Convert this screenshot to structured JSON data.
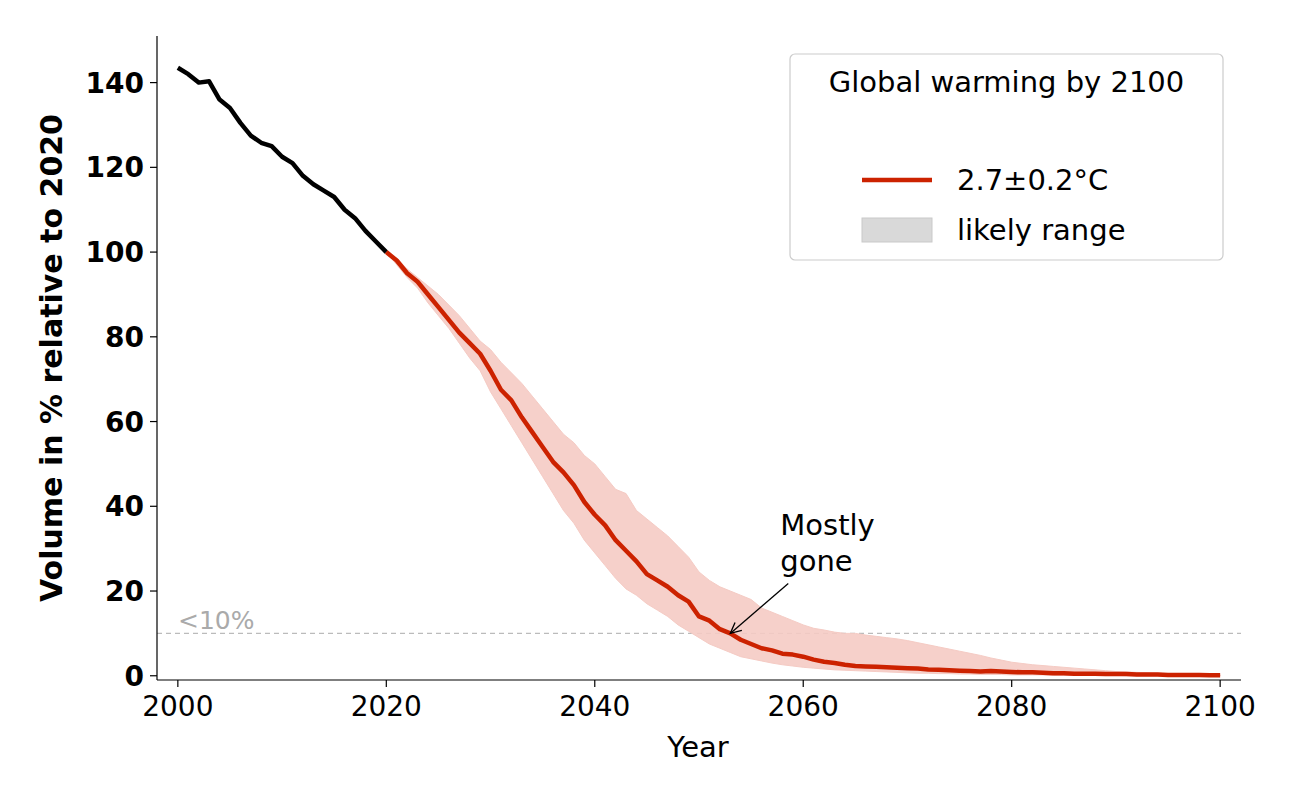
{
  "chart_data": {
    "type": "line",
    "x_label": "Year",
    "y_label": "Volume in % relative to 2020",
    "legend_title": "Global warming by 2100",
    "legend": "upper right",
    "grid": false,
    "xlim": [
      1998,
      2102
    ],
    "ylim": [
      -1,
      151
    ],
    "xticks": [
      2000,
      2020,
      2040,
      2060,
      2080,
      2100
    ],
    "yticks": [
      0,
      20,
      40,
      60,
      80,
      100,
      120,
      140
    ],
    "reference_lines": [
      {
        "value": 10,
        "label": "<10%",
        "line_style": "dashed",
        "color": "#bbbbbb"
      }
    ],
    "annotations": [
      {
        "text": "Mostly gone",
        "x": 2053,
        "y": 10
      }
    ],
    "x": [
      2000,
      2001,
      2002,
      2003,
      2004,
      2005,
      2006,
      2007,
      2008,
      2009,
      2010,
      2011,
      2012,
      2013,
      2014,
      2015,
      2016,
      2017,
      2018,
      2019,
      2020,
      2021,
      2022,
      2023,
      2024,
      2025,
      2026,
      2027,
      2028,
      2029,
      2030,
      2031,
      2032,
      2033,
      2034,
      2035,
      2036,
      2037,
      2038,
      2039,
      2040,
      2041,
      2042,
      2043,
      2044,
      2045,
      2046,
      2047,
      2048,
      2049,
      2050,
      2051,
      2052,
      2053,
      2054,
      2055,
      2056,
      2057,
      2058,
      2059,
      2060,
      2061,
      2062,
      2063,
      2064,
      2065,
      2066,
      2067,
      2068,
      2069,
      2070,
      2071,
      2072,
      2073,
      2074,
      2075,
      2076,
      2077,
      2078,
      2079,
      2080,
      2081,
      2082,
      2083,
      2084,
      2085,
      2086,
      2087,
      2088,
      2089,
      2090,
      2091,
      2092,
      2093,
      2094,
      2095,
      2096,
      2097,
      2098,
      2099,
      2100
    ],
    "series": [
      {
        "color": "#000000",
        "line_style": "solid",
        "values": [
          143.5,
          142,
          140,
          140.3,
          136,
          134,
          130.5,
          127.5,
          125.8,
          125,
          122.5,
          121,
          118,
          116,
          114.5,
          113,
          110,
          108,
          105,
          102.5,
          100,
          null,
          null,
          null,
          null,
          null,
          null,
          null,
          null,
          null,
          null,
          null,
          null,
          null,
          null,
          null,
          null,
          null,
          null,
          null,
          null,
          null,
          null,
          null,
          null,
          null,
          null,
          null,
          null,
          null,
          null,
          null,
          null,
          null,
          null,
          null,
          null,
          null,
          null,
          null,
          null,
          null,
          null,
          null,
          null,
          null,
          null,
          null,
          null,
          null,
          null,
          null,
          null,
          null,
          null,
          null,
          null,
          null,
          null,
          null,
          null,
          null,
          null,
          null,
          null,
          null,
          null,
          null,
          null,
          null,
          null,
          null,
          null,
          null,
          null,
          null,
          null,
          null,
          null,
          null,
          null
        ]
      },
      {
        "name": "2.7±0.2°C",
        "color": "#cc2200",
        "line_style": "solid",
        "values": [
          null,
          null,
          null,
          null,
          null,
          null,
          null,
          null,
          null,
          null,
          null,
          null,
          null,
          null,
          null,
          null,
          null,
          null,
          null,
          null,
          100,
          98,
          95,
          93,
          90,
          87,
          84,
          81,
          78.5,
          76,
          72,
          67.5,
          65,
          61,
          57.5,
          54,
          50.5,
          48,
          45,
          41,
          38,
          35.5,
          32,
          29.5,
          27,
          24,
          22.5,
          21,
          19,
          17.5,
          14,
          13,
          11,
          10,
          8.5,
          7.5,
          6.5,
          6,
          5.2,
          5,
          4.5,
          3.8,
          3.3,
          3,
          2.6,
          2.3,
          2.2,
          2.1,
          2,
          1.9,
          1.8,
          1.7,
          1.5,
          1.4,
          1.3,
          1.2,
          1.1,
          1,
          1.1,
          1,
          0.9,
          0.8,
          0.8,
          0.7,
          0.6,
          0.6,
          0.5,
          0.5,
          0.5,
          0.4,
          0.4,
          0.4,
          0.3,
          0.3,
          0.3,
          0.2,
          0.2,
          0.2,
          0.2,
          0.1,
          0.1
        ]
      },
      {
        "name": "likely range",
        "type": "band",
        "color": "#f5cbc4",
        "lower": [
          null,
          null,
          null,
          null,
          null,
          null,
          null,
          null,
          null,
          null,
          null,
          null,
          null,
          null,
          null,
          null,
          null,
          null,
          null,
          null,
          100,
          97,
          94,
          91.5,
          88,
          85,
          82,
          78.5,
          75,
          72,
          67,
          63,
          59,
          55,
          51,
          47,
          43,
          39,
          36,
          32,
          29,
          26,
          23,
          20.5,
          19,
          17,
          15.5,
          14,
          12,
          10.5,
          9,
          7.5,
          6.5,
          5.5,
          4.5,
          4,
          3.5,
          3,
          2.6,
          2.3,
          2,
          1.8,
          1.6,
          1.4,
          1.3,
          1.2,
          1.1,
          1,
          0.9,
          0.8,
          0.7,
          0.6,
          0.6,
          0.5,
          0.5,
          0.4,
          0.4,
          0.3,
          0.3,
          0.3,
          0.2,
          0.2,
          0.2,
          0.2,
          0.1,
          0.1,
          0.1,
          0.1,
          0.1,
          0.1,
          0.1,
          0,
          0,
          0,
          0,
          0,
          0,
          0,
          0,
          0,
          0
        ],
        "upper": [
          null,
          null,
          null,
          null,
          null,
          null,
          null,
          null,
          null,
          null,
          null,
          null,
          null,
          null,
          null,
          null,
          null,
          null,
          null,
          null,
          100,
          98.5,
          96,
          94,
          92,
          90,
          87.5,
          85,
          82,
          79,
          77,
          74,
          71.5,
          69,
          66,
          63,
          60,
          57,
          55,
          52,
          50,
          47,
          44,
          43,
          39,
          37,
          35,
          33,
          30.5,
          28,
          24.5,
          22.5,
          21,
          20,
          19,
          18,
          16,
          15,
          14,
          13,
          12,
          11.2,
          10.8,
          10.3,
          10,
          10,
          9.6,
          9.3,
          9,
          8.7,
          8.3,
          7.8,
          7.3,
          6.8,
          6.3,
          5.8,
          5.3,
          4.8,
          4.2,
          3.7,
          3.2,
          2.9,
          2.6,
          2.4,
          2.2,
          2,
          1.8,
          1.6,
          1.4,
          1.2,
          1,
          0.9,
          0.8,
          0.7,
          0.6,
          0.5,
          0.4,
          0.3,
          0.3,
          0.2,
          0.2
        ]
      }
    ]
  }
}
